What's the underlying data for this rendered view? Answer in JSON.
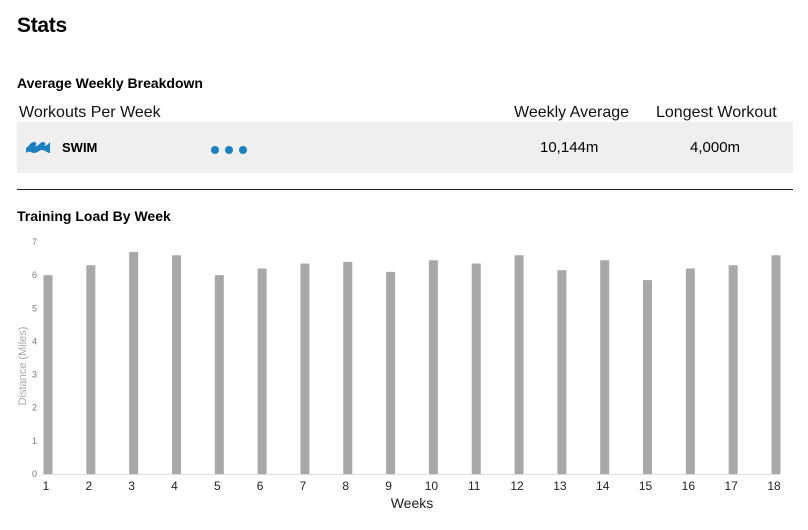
{
  "page": {
    "title": "Stats"
  },
  "breakdown": {
    "title": "Average Weekly Breakdown",
    "headers": {
      "workouts": "Workouts Per Week",
      "weekly_average": "Weekly Average",
      "longest_workout": "Longest Workout"
    },
    "row": {
      "sport": "SWIM",
      "workouts_per_week_dots": 3,
      "weekly_average": "10,144m",
      "longest_workout": "4,000m"
    }
  },
  "training_load": {
    "title": "Training Load By Week"
  },
  "colors": {
    "accent": "#1b7fc0",
    "bar": "#aaa7a7",
    "row_bg": "#efefef"
  },
  "chart_data": {
    "type": "bar",
    "title": "Training Load By Week",
    "xlabel": "Weeks",
    "ylabel": "Distance (Miles)",
    "ylim": [
      0,
      7
    ],
    "yticks": [
      "0",
      "1",
      "2",
      "3",
      "4",
      "5",
      "6",
      "7"
    ],
    "categories": [
      "1",
      "2",
      "3",
      "4",
      "5",
      "6",
      "7",
      "8",
      "9",
      "10",
      "11",
      "12",
      "13",
      "14",
      "15",
      "16",
      "17",
      "18"
    ],
    "values": [
      6.0,
      6.3,
      6.7,
      6.6,
      6.0,
      6.2,
      6.35,
      6.4,
      6.1,
      6.45,
      6.35,
      6.6,
      6.15,
      6.45,
      5.85,
      6.2,
      6.3,
      6.6
    ],
    "grid": false,
    "legend": "none"
  }
}
